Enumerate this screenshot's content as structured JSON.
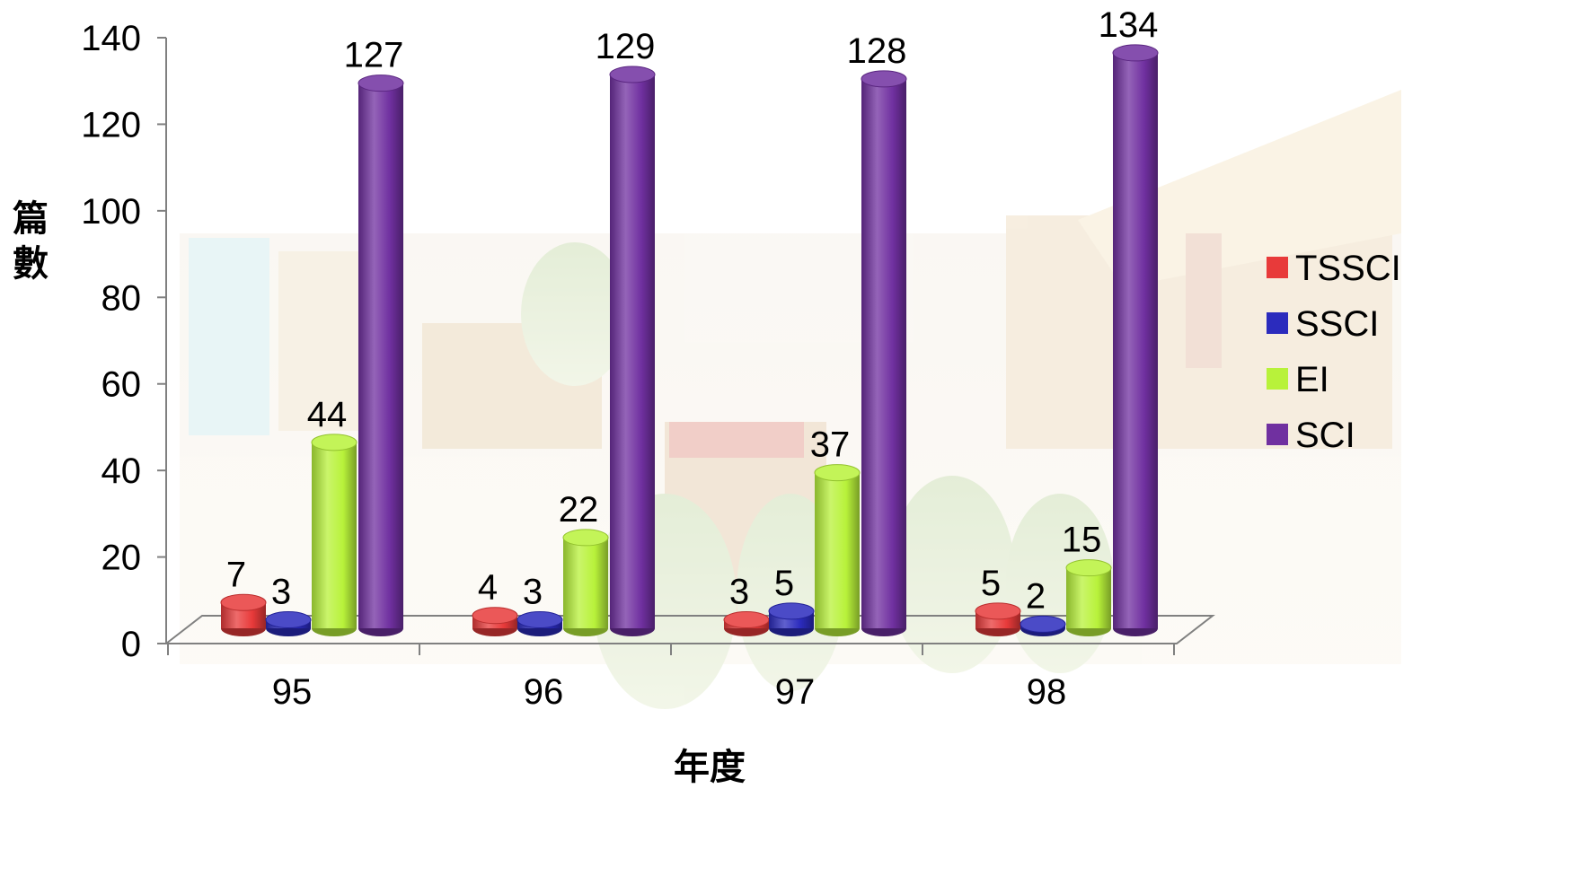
{
  "chart_data": {
    "type": "bar",
    "categories": [
      "95",
      "96",
      "97",
      "98"
    ],
    "series": [
      {
        "name": "TSSCI",
        "values": [
          7,
          4,
          3,
          5
        ],
        "color": "#e83a3a"
      },
      {
        "name": "SSCI",
        "values": [
          3,
          3,
          5,
          2
        ],
        "color": "#2b2bbd"
      },
      {
        "name": "EI",
        "values": [
          44,
          22,
          37,
          15
        ],
        "color": "#b8f23a"
      },
      {
        "name": "SCI",
        "values": [
          127,
          129,
          128,
          134
        ],
        "color": "#7030a0"
      }
    ],
    "xlabel": "年度",
    "ylabel": "篇數",
    "ylim": [
      0,
      140
    ],
    "yticks": [
      "0",
      "20",
      "40",
      "60",
      "80",
      "100",
      "120",
      "140"
    ],
    "legend_position": "right",
    "style": "3d-cylinder"
  }
}
